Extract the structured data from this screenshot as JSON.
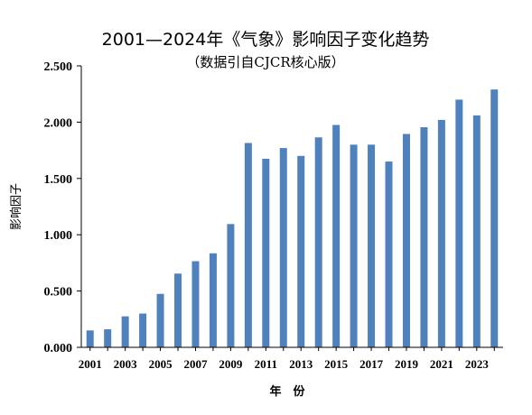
{
  "chart_data": {
    "type": "bar",
    "title": "2001—2024年《气象》影响因子变化趋势",
    "subtitle": "（数据引自CJCR核心版）",
    "ylabel": "影响因子",
    "xlabel": "年　份",
    "ylim": [
      0,
      2.5
    ],
    "yticks": [
      0,
      0.5,
      1.0,
      1.5,
      2.0,
      2.5
    ],
    "ytick_labels": [
      "0.000",
      "0.500",
      "1.000",
      "1.500",
      "2.000",
      "2.500"
    ],
    "grid": false,
    "legend": "none",
    "bar_color": "#4f81bd",
    "categories": [
      "2001",
      "2002",
      "2003",
      "2004",
      "2005",
      "2006",
      "2007",
      "2008",
      "2009",
      "2010",
      "2011",
      "2012",
      "2013",
      "2014",
      "2015",
      "2016",
      "2017",
      "2018",
      "2019",
      "2020",
      "2021",
      "2022",
      "2023",
      "2024"
    ],
    "xtick_labels": [
      "2001",
      "2003",
      "2005",
      "2007",
      "2009",
      "2011",
      "2013",
      "2015",
      "2017",
      "2019",
      "2021",
      "2023"
    ],
    "values": [
      0.15,
      0.16,
      0.275,
      0.3,
      0.475,
      0.655,
      0.765,
      0.835,
      1.095,
      1.815,
      1.675,
      1.77,
      1.7,
      1.865,
      1.975,
      1.8,
      1.8,
      1.65,
      1.895,
      1.955,
      2.02,
      2.2,
      2.06,
      2.29
    ]
  }
}
